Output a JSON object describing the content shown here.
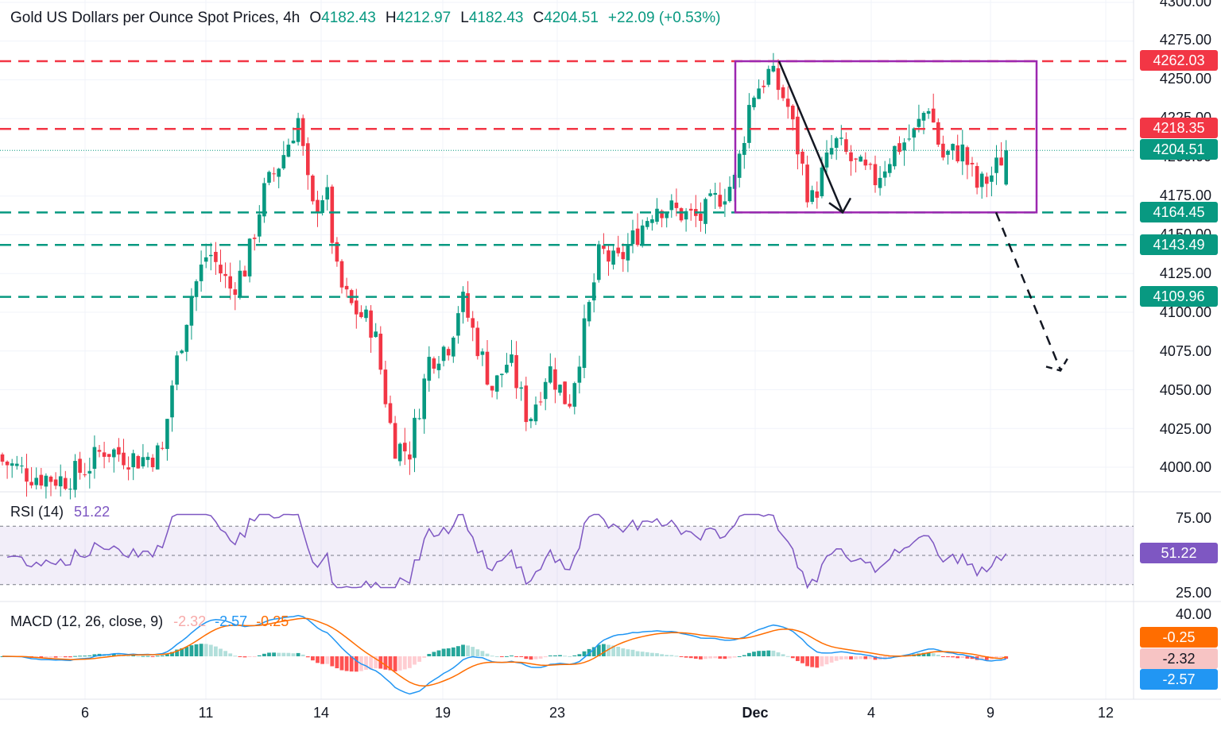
{
  "header": {
    "title": "Gold US Dollars per Ounce Spot Prices, 4h",
    "open_label": "O",
    "open": "4182.43",
    "high_label": "H",
    "high": "4212.97",
    "low_label": "L",
    "low": "4182.43",
    "close_label": "C",
    "close": "4204.51",
    "change": "+22.09 (+0.53%)"
  },
  "colors": {
    "up": "#26a69a",
    "up_body": "#089981",
    "down": "#f23645",
    "resistance": "#f23645",
    "support": "#089981",
    "box": "#9c27b0",
    "rsi": "#7e57c2",
    "macd": "#2196f3",
    "signal": "#ff6d00",
    "last_price": "#131722"
  },
  "chart_data": [
    {
      "type": "candlestick",
      "title": "Gold US Dollars per Ounce Spot Prices, 4h",
      "ylim": [
        3990,
        4300
      ],
      "y_ticks": [
        "4300.00",
        "4275.00",
        "4250.00",
        "4225.00",
        "4200.00",
        "4175.00",
        "4150.00",
        "4125.00",
        "4100.00",
        "4075.00",
        "4050.00",
        "4025.00",
        "4000.00"
      ],
      "x_ticks": [
        "6",
        "11",
        "14",
        "19",
        "23",
        "Dec",
        "4",
        "9",
        "12"
      ],
      "price_levels": [
        {
          "value": 4262.03,
          "label": "4262.03",
          "kind": "resistance"
        },
        {
          "value": 4218.35,
          "label": "4218.35",
          "kind": "resistance"
        },
        {
          "value": 4204.51,
          "label": "4204.51",
          "kind": "last"
        },
        {
          "value": 4164.45,
          "label": "4164.45",
          "kind": "support"
        },
        {
          "value": 4143.49,
          "label": "4143.49",
          "kind": "support"
        },
        {
          "value": 4109.96,
          "label": "4109.96",
          "kind": "support"
        }
      ],
      "range_box": {
        "top": 4262.03,
        "bottom": 4164.45
      },
      "arrow_down": {
        "from": 4262.03,
        "to": 4164.45
      },
      "projection": {
        "from": 4164.45,
        "to": 4068
      }
    },
    {
      "type": "line",
      "name": "RSI (14)",
      "value": "51.22",
      "y_ticks": [
        "75.00",
        "25.00"
      ],
      "bands": [
        70,
        30
      ],
      "midline": 50
    },
    {
      "type": "line",
      "name": "MACD (12, 26, close, 9)",
      "values": [
        "-2.32",
        "-2.57",
        "-0.25"
      ],
      "y_ticks": [
        "40.00"
      ],
      "tags": [
        "-0.25",
        "-2.32",
        "-2.57"
      ]
    }
  ]
}
